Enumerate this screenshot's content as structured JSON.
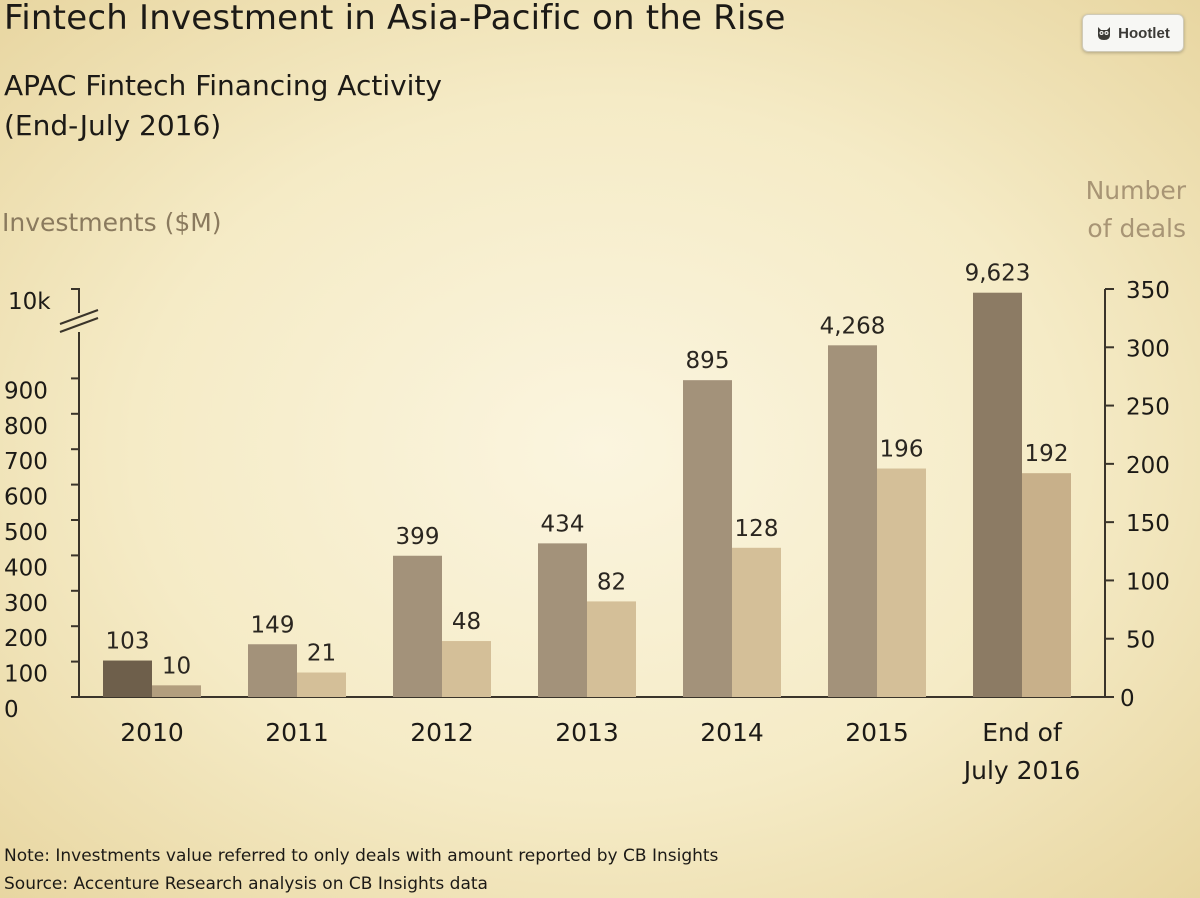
{
  "header": {
    "title": "Fintech Investment in Asia-Pacific on the Rise",
    "subtitle_line1": "APAC Fintech Financing Activity",
    "subtitle_line2": "(End-July 2016)"
  },
  "hootlet": {
    "label": "Hootlet",
    "icon": "owl-icon"
  },
  "footer": {
    "note": "Note: Investments value referred to only deals with amount reported by CB Insights",
    "source": "Source: Accenture Research analysis on CB Insights data"
  },
  "colors": {
    "investment_bar": "#a3927a",
    "deals_bar": "#d4bf98",
    "investment_first": "#6e5f4b",
    "deals_first": "#b29e7e",
    "investment_last": "#8c7b64",
    "deals_last": "#c8b08a"
  },
  "chart_data": {
    "type": "bar",
    "categories": [
      "2010",
      "2011",
      "2012",
      "2013",
      "2014",
      "2015",
      "End of July 2016"
    ],
    "category_lines": [
      [
        "2010"
      ],
      [
        "2011"
      ],
      [
        "2012"
      ],
      [
        "2013"
      ],
      [
        "2014"
      ],
      [
        "2015"
      ],
      [
        "End of",
        "July 2016"
      ]
    ],
    "series": [
      {
        "axis": "left",
        "values": [
          103,
          149,
          399,
          434,
          895,
          4268,
          9623
        ],
        "labels": [
          "103",
          "149",
          "399",
          "434",
          "895",
          "4,268",
          "9,623"
        ]
      },
      {
        "axis": "right",
        "values": [
          10,
          21,
          48,
          82,
          128,
          196,
          192
        ],
        "labels": [
          "10",
          "21",
          "48",
          "82",
          "128",
          "196",
          "192"
        ]
      }
    ],
    "ylabel_left": "Investments ($M)",
    "ylabel_right_line1": "Number",
    "ylabel_right_line2": "of deals",
    "yticks_left": [
      "0",
      "100",
      "200",
      "300",
      "400",
      "500",
      "600",
      "700",
      "800",
      "900",
      "10k"
    ],
    "yticks_right": [
      0,
      50,
      100,
      150,
      200,
      250,
      300,
      350
    ],
    "ylim_left": [
      0,
      10000
    ],
    "ylim_right": [
      0,
      350
    ],
    "axis_break": "between 900 and 10k",
    "grid": false,
    "legend": "none"
  }
}
